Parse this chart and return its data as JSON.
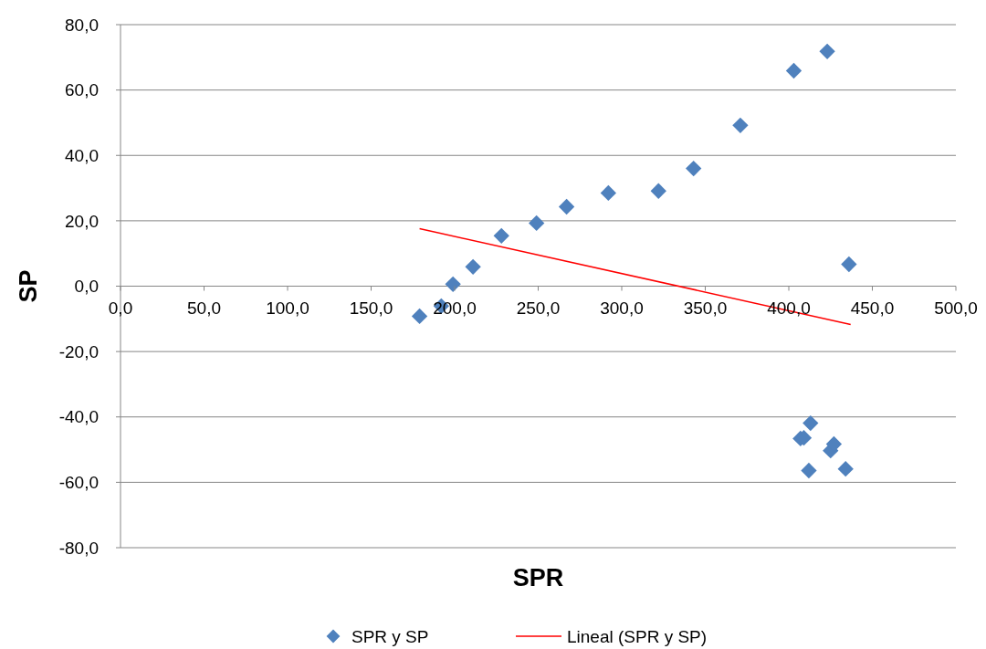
{
  "chart_data": {
    "type": "scatter",
    "xlabel": "SPR",
    "ylabel": "SP",
    "xlim": [
      0,
      500
    ],
    "ylim": [
      -80,
      80
    ],
    "xticks": [
      {
        "value": 0,
        "label": "0,0"
      },
      {
        "value": 50,
        "label": "50,0"
      },
      {
        "value": 100,
        "label": "100,0"
      },
      {
        "value": 150,
        "label": "150,0"
      },
      {
        "value": 200,
        "label": "200,0"
      },
      {
        "value": 250,
        "label": "250,0"
      },
      {
        "value": 300,
        "label": "300,0"
      },
      {
        "value": 350,
        "label": "350,0"
      },
      {
        "value": 400,
        "label": "400,0"
      },
      {
        "value": 450,
        "label": "450,0"
      },
      {
        "value": 500,
        "label": "500,0"
      }
    ],
    "yticks": [
      {
        "value": -80,
        "label": "-80,0"
      },
      {
        "value": -60,
        "label": "-60,0"
      },
      {
        "value": -40,
        "label": "-40,0"
      },
      {
        "value": -20,
        "label": "-20,0"
      },
      {
        "value": 0,
        "label": "0,0"
      },
      {
        "value": 20,
        "label": "20,0"
      },
      {
        "value": 40,
        "label": "40,0"
      },
      {
        "value": 60,
        "label": "60,0"
      },
      {
        "value": 80,
        "label": "80,0"
      }
    ],
    "grid": "y",
    "legend": "bottom",
    "series": [
      {
        "name": "SPR y SP",
        "color": "#4f81bd",
        "marker": "diamond",
        "x": [
          179,
          192,
          199,
          211,
          228,
          249,
          267,
          292,
          322,
          343,
          371,
          403,
          423,
          436,
          407,
          409,
          413,
          412,
          425,
          427,
          434
        ],
        "values": [
          -9.2,
          -6.1,
          0.6,
          5.9,
          15.4,
          19.3,
          24.3,
          28.5,
          29.1,
          36.0,
          49.2,
          65.9,
          71.8,
          6.7,
          -46.6,
          -46.4,
          -41.9,
          -56.4,
          -50.3,
          -48.3,
          -55.9
        ]
      },
      {
        "name": "Lineal (SPR y SP)",
        "color": "#ff0000",
        "type": "line",
        "x": [
          179,
          437
        ],
        "values": [
          17.6,
          -11.7
        ]
      }
    ]
  }
}
